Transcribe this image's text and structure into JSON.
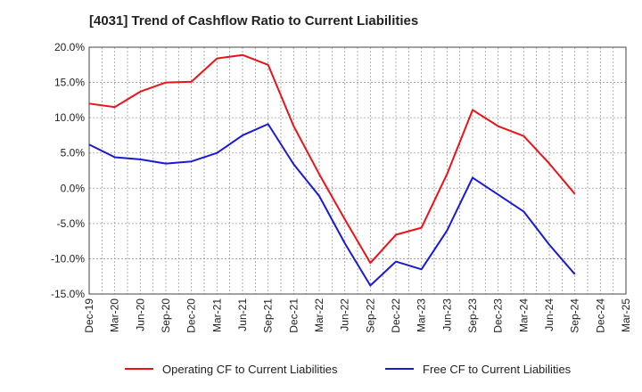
{
  "chart_data": {
    "type": "line",
    "title": "[4031]  Trend of Cashflow Ratio to Current Liabilities",
    "x": [
      "Dec-19",
      "Mar-20",
      "Jun-20",
      "Sep-20",
      "Dec-20",
      "Mar-21",
      "Jun-21",
      "Sep-21",
      "Dec-21",
      "Mar-22",
      "Jun-22",
      "Sep-22",
      "Dec-22",
      "Mar-23",
      "Jun-23",
      "Sep-23",
      "Dec-23",
      "Mar-24",
      "Jun-24",
      "Sep-24",
      "Dec-24",
      "Mar-25"
    ],
    "y_ticks": [
      "20.0%",
      "15.0%",
      "10.0%",
      "5.0%",
      "0.0%",
      "-5.0%",
      "-10.0%",
      "-15.0%"
    ],
    "ylim": [
      -15,
      20
    ],
    "y_step": 5,
    "grid": true,
    "legend_position": "bottom",
    "series": [
      {
        "name": "Operating CF to Current Liabilities",
        "color": "#e8141a",
        "values": [
          12.0,
          11.5,
          13.7,
          15.0,
          15.1,
          18.4,
          18.9,
          17.5,
          8.8,
          2.0,
          -4.4,
          -10.6,
          -6.6,
          -5.6,
          2.0,
          11.1,
          8.8,
          7.4,
          3.5,
          -0.8,
          null,
          null
        ]
      },
      {
        "name": "Free CF to Current Liabilities",
        "color": "#1a1ad6",
        "values": [
          6.2,
          4.4,
          4.1,
          3.5,
          3.8,
          5.0,
          7.5,
          9.1,
          3.4,
          -1.1,
          -7.8,
          -13.8,
          -10.4,
          -11.5,
          -6.0,
          1.5,
          -0.9,
          -3.3,
          -8.0,
          -12.2,
          null,
          null
        ]
      }
    ]
  }
}
